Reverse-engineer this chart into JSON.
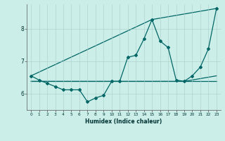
{
  "xlabel": "Humidex (Indice chaleur)",
  "background_color": "#cceee8",
  "grid_color": "#aacccc",
  "line_color": "#006666",
  "xlim": [
    -0.5,
    23.5
  ],
  "ylim": [
    5.5,
    8.75
  ],
  "xticks": [
    0,
    1,
    2,
    3,
    4,
    5,
    6,
    7,
    8,
    9,
    10,
    11,
    12,
    13,
    14,
    15,
    16,
    17,
    18,
    19,
    20,
    21,
    22,
    23
  ],
  "yticks": [
    6,
    7,
    8
  ],
  "main_series": {
    "x": [
      0,
      1,
      2,
      3,
      4,
      5,
      6,
      7,
      8,
      9,
      10,
      11,
      12,
      13,
      14,
      15,
      16,
      17,
      18,
      19,
      20,
      21,
      22,
      23
    ],
    "y": [
      6.55,
      6.42,
      6.32,
      6.22,
      6.12,
      6.12,
      6.12,
      5.75,
      5.87,
      5.95,
      6.38,
      6.38,
      7.12,
      7.18,
      7.68,
      8.28,
      7.62,
      7.42,
      6.42,
      6.38,
      6.55,
      6.82,
      7.38,
      8.62
    ]
  },
  "line2": {
    "x": [
      0,
      15,
      23
    ],
    "y": [
      6.55,
      8.28,
      8.62
    ]
  },
  "line3": {
    "x": [
      0,
      19,
      23
    ],
    "y": [
      6.38,
      6.38,
      6.38
    ]
  },
  "line4": {
    "x": [
      0,
      19,
      23
    ],
    "y": [
      6.38,
      6.38,
      6.55
    ]
  }
}
